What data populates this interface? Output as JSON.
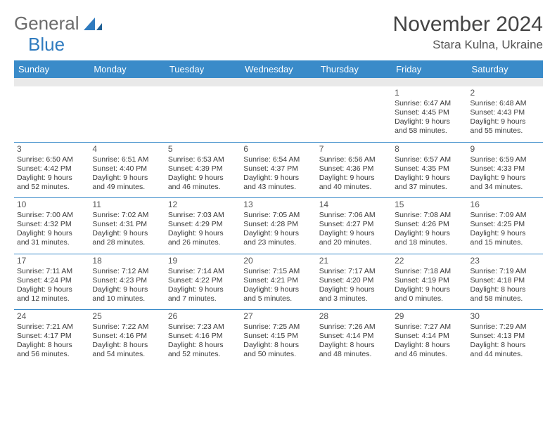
{
  "brand": {
    "part1": "General",
    "part2": "Blue"
  },
  "header": {
    "month_title": "November 2024",
    "location": "Stara Kulna, Ukraine"
  },
  "colors": {
    "header_bg": "#3a8bc9",
    "divider": "#3a8bc9",
    "spacer": "#e9e9e9"
  },
  "weekdays": [
    "Sunday",
    "Monday",
    "Tuesday",
    "Wednesday",
    "Thursday",
    "Friday",
    "Saturday"
  ],
  "weeks": [
    [
      null,
      null,
      null,
      null,
      null,
      {
        "n": "1",
        "sr": "Sunrise: 6:47 AM",
        "ss": "Sunset: 4:45 PM",
        "d1": "Daylight: 9 hours",
        "d2": "and 58 minutes."
      },
      {
        "n": "2",
        "sr": "Sunrise: 6:48 AM",
        "ss": "Sunset: 4:43 PM",
        "d1": "Daylight: 9 hours",
        "d2": "and 55 minutes."
      }
    ],
    [
      {
        "n": "3",
        "sr": "Sunrise: 6:50 AM",
        "ss": "Sunset: 4:42 PM",
        "d1": "Daylight: 9 hours",
        "d2": "and 52 minutes."
      },
      {
        "n": "4",
        "sr": "Sunrise: 6:51 AM",
        "ss": "Sunset: 4:40 PM",
        "d1": "Daylight: 9 hours",
        "d2": "and 49 minutes."
      },
      {
        "n": "5",
        "sr": "Sunrise: 6:53 AM",
        "ss": "Sunset: 4:39 PM",
        "d1": "Daylight: 9 hours",
        "d2": "and 46 minutes."
      },
      {
        "n": "6",
        "sr": "Sunrise: 6:54 AM",
        "ss": "Sunset: 4:37 PM",
        "d1": "Daylight: 9 hours",
        "d2": "and 43 minutes."
      },
      {
        "n": "7",
        "sr": "Sunrise: 6:56 AM",
        "ss": "Sunset: 4:36 PM",
        "d1": "Daylight: 9 hours",
        "d2": "and 40 minutes."
      },
      {
        "n": "8",
        "sr": "Sunrise: 6:57 AM",
        "ss": "Sunset: 4:35 PM",
        "d1": "Daylight: 9 hours",
        "d2": "and 37 minutes."
      },
      {
        "n": "9",
        "sr": "Sunrise: 6:59 AM",
        "ss": "Sunset: 4:33 PM",
        "d1": "Daylight: 9 hours",
        "d2": "and 34 minutes."
      }
    ],
    [
      {
        "n": "10",
        "sr": "Sunrise: 7:00 AM",
        "ss": "Sunset: 4:32 PM",
        "d1": "Daylight: 9 hours",
        "d2": "and 31 minutes."
      },
      {
        "n": "11",
        "sr": "Sunrise: 7:02 AM",
        "ss": "Sunset: 4:31 PM",
        "d1": "Daylight: 9 hours",
        "d2": "and 28 minutes."
      },
      {
        "n": "12",
        "sr": "Sunrise: 7:03 AM",
        "ss": "Sunset: 4:29 PM",
        "d1": "Daylight: 9 hours",
        "d2": "and 26 minutes."
      },
      {
        "n": "13",
        "sr": "Sunrise: 7:05 AM",
        "ss": "Sunset: 4:28 PM",
        "d1": "Daylight: 9 hours",
        "d2": "and 23 minutes."
      },
      {
        "n": "14",
        "sr": "Sunrise: 7:06 AM",
        "ss": "Sunset: 4:27 PM",
        "d1": "Daylight: 9 hours",
        "d2": "and 20 minutes."
      },
      {
        "n": "15",
        "sr": "Sunrise: 7:08 AM",
        "ss": "Sunset: 4:26 PM",
        "d1": "Daylight: 9 hours",
        "d2": "and 18 minutes."
      },
      {
        "n": "16",
        "sr": "Sunrise: 7:09 AM",
        "ss": "Sunset: 4:25 PM",
        "d1": "Daylight: 9 hours",
        "d2": "and 15 minutes."
      }
    ],
    [
      {
        "n": "17",
        "sr": "Sunrise: 7:11 AM",
        "ss": "Sunset: 4:24 PM",
        "d1": "Daylight: 9 hours",
        "d2": "and 12 minutes."
      },
      {
        "n": "18",
        "sr": "Sunrise: 7:12 AM",
        "ss": "Sunset: 4:23 PM",
        "d1": "Daylight: 9 hours",
        "d2": "and 10 minutes."
      },
      {
        "n": "19",
        "sr": "Sunrise: 7:14 AM",
        "ss": "Sunset: 4:22 PM",
        "d1": "Daylight: 9 hours",
        "d2": "and 7 minutes."
      },
      {
        "n": "20",
        "sr": "Sunrise: 7:15 AM",
        "ss": "Sunset: 4:21 PM",
        "d1": "Daylight: 9 hours",
        "d2": "and 5 minutes."
      },
      {
        "n": "21",
        "sr": "Sunrise: 7:17 AM",
        "ss": "Sunset: 4:20 PM",
        "d1": "Daylight: 9 hours",
        "d2": "and 3 minutes."
      },
      {
        "n": "22",
        "sr": "Sunrise: 7:18 AM",
        "ss": "Sunset: 4:19 PM",
        "d1": "Daylight: 9 hours",
        "d2": "and 0 minutes."
      },
      {
        "n": "23",
        "sr": "Sunrise: 7:19 AM",
        "ss": "Sunset: 4:18 PM",
        "d1": "Daylight: 8 hours",
        "d2": "and 58 minutes."
      }
    ],
    [
      {
        "n": "24",
        "sr": "Sunrise: 7:21 AM",
        "ss": "Sunset: 4:17 PM",
        "d1": "Daylight: 8 hours",
        "d2": "and 56 minutes."
      },
      {
        "n": "25",
        "sr": "Sunrise: 7:22 AM",
        "ss": "Sunset: 4:16 PM",
        "d1": "Daylight: 8 hours",
        "d2": "and 54 minutes."
      },
      {
        "n": "26",
        "sr": "Sunrise: 7:23 AM",
        "ss": "Sunset: 4:16 PM",
        "d1": "Daylight: 8 hours",
        "d2": "and 52 minutes."
      },
      {
        "n": "27",
        "sr": "Sunrise: 7:25 AM",
        "ss": "Sunset: 4:15 PM",
        "d1": "Daylight: 8 hours",
        "d2": "and 50 minutes."
      },
      {
        "n": "28",
        "sr": "Sunrise: 7:26 AM",
        "ss": "Sunset: 4:14 PM",
        "d1": "Daylight: 8 hours",
        "d2": "and 48 minutes."
      },
      {
        "n": "29",
        "sr": "Sunrise: 7:27 AM",
        "ss": "Sunset: 4:14 PM",
        "d1": "Daylight: 8 hours",
        "d2": "and 46 minutes."
      },
      {
        "n": "30",
        "sr": "Sunrise: 7:29 AM",
        "ss": "Sunset: 4:13 PM",
        "d1": "Daylight: 8 hours",
        "d2": "and 44 minutes."
      }
    ]
  ]
}
